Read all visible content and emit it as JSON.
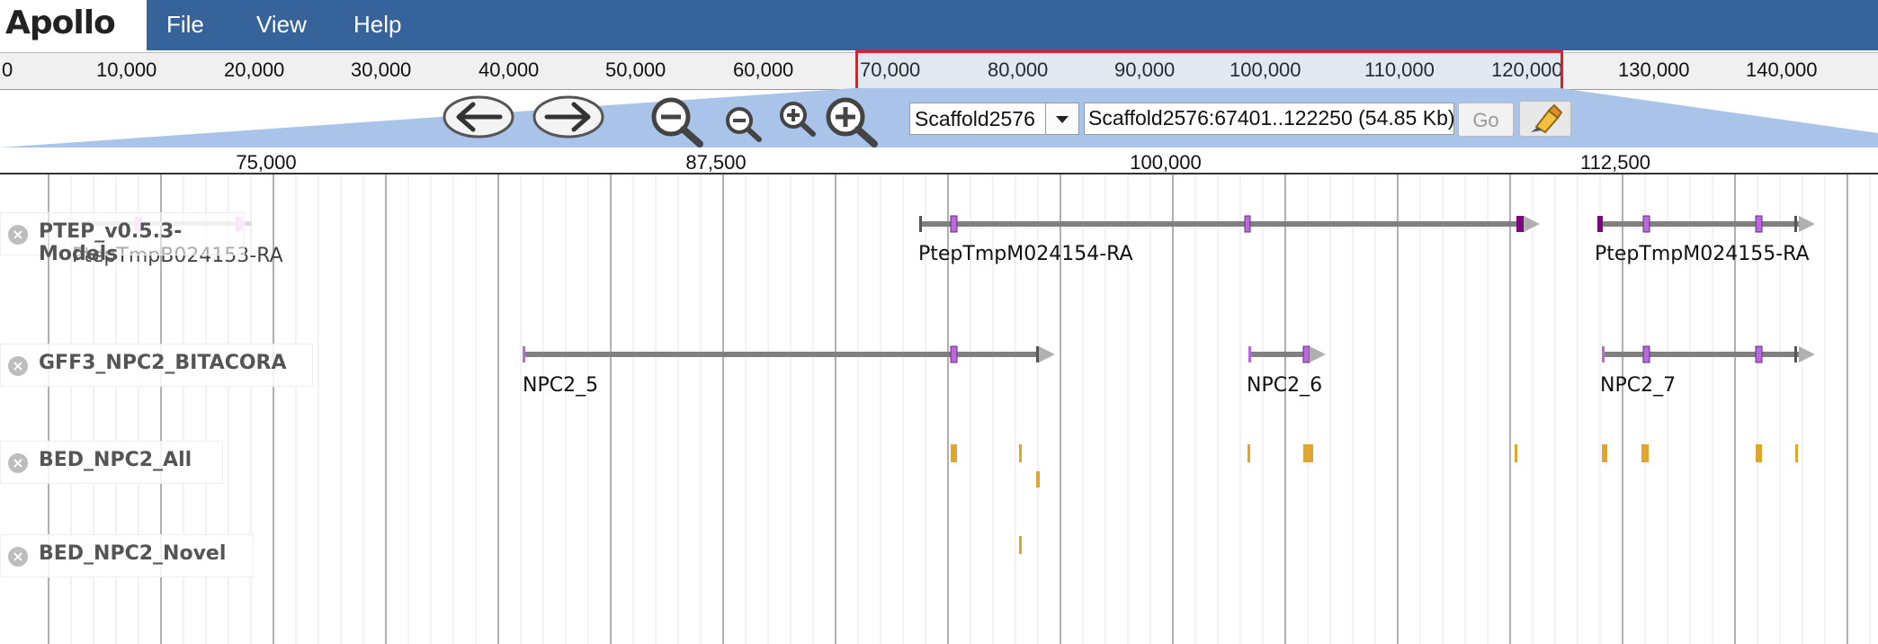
{
  "app": {
    "logo_text": "Apollo"
  },
  "menu": {
    "file": "File",
    "view": "View",
    "help": "Help"
  },
  "overview": {
    "ticks": [
      "0",
      "10,000",
      "20,000",
      "30,000",
      "40,000",
      "50,000",
      "60,000",
      "70,000",
      "80,000",
      "90,000",
      "100,000",
      "110,000",
      "120,000",
      "130,000",
      "140,000"
    ]
  },
  "navigation": {
    "reference": "Scaffold2576",
    "location": "Scaffold2576:67401..122250 (54.85 Kb)",
    "go_label": "Go"
  },
  "ruler": {
    "ticks": [
      "75,000",
      "87,500",
      "100,000",
      "112,500"
    ]
  },
  "tracks": [
    {
      "name": "PTEP_v0.5.3-Models",
      "features": [
        "PtepTmpB024153-RA",
        "PtepTmpM024154-RA",
        "PtepTmpM024155-RA"
      ]
    },
    {
      "name": "GFF3_NPC2_BITACORA",
      "features": [
        "NPC2_5",
        "NPC2_6",
        "NPC2_7"
      ]
    },
    {
      "name": "BED_NPC2_All"
    },
    {
      "name": "BED_NPC2_Novel"
    }
  ],
  "colors": {
    "menubar": "#36649a",
    "selection": "#e81c1c",
    "exon": "#b86ad8",
    "bed": "#e0a52c",
    "feature_line": "#808080"
  },
  "icons": [
    "back-arrow-icon",
    "forward-arrow-icon",
    "zoom-out-large-icon",
    "zoom-out-small-icon",
    "zoom-in-small-icon",
    "zoom-in-large-icon",
    "dropdown-arrow-icon",
    "highlighter-icon",
    "close-icon"
  ]
}
